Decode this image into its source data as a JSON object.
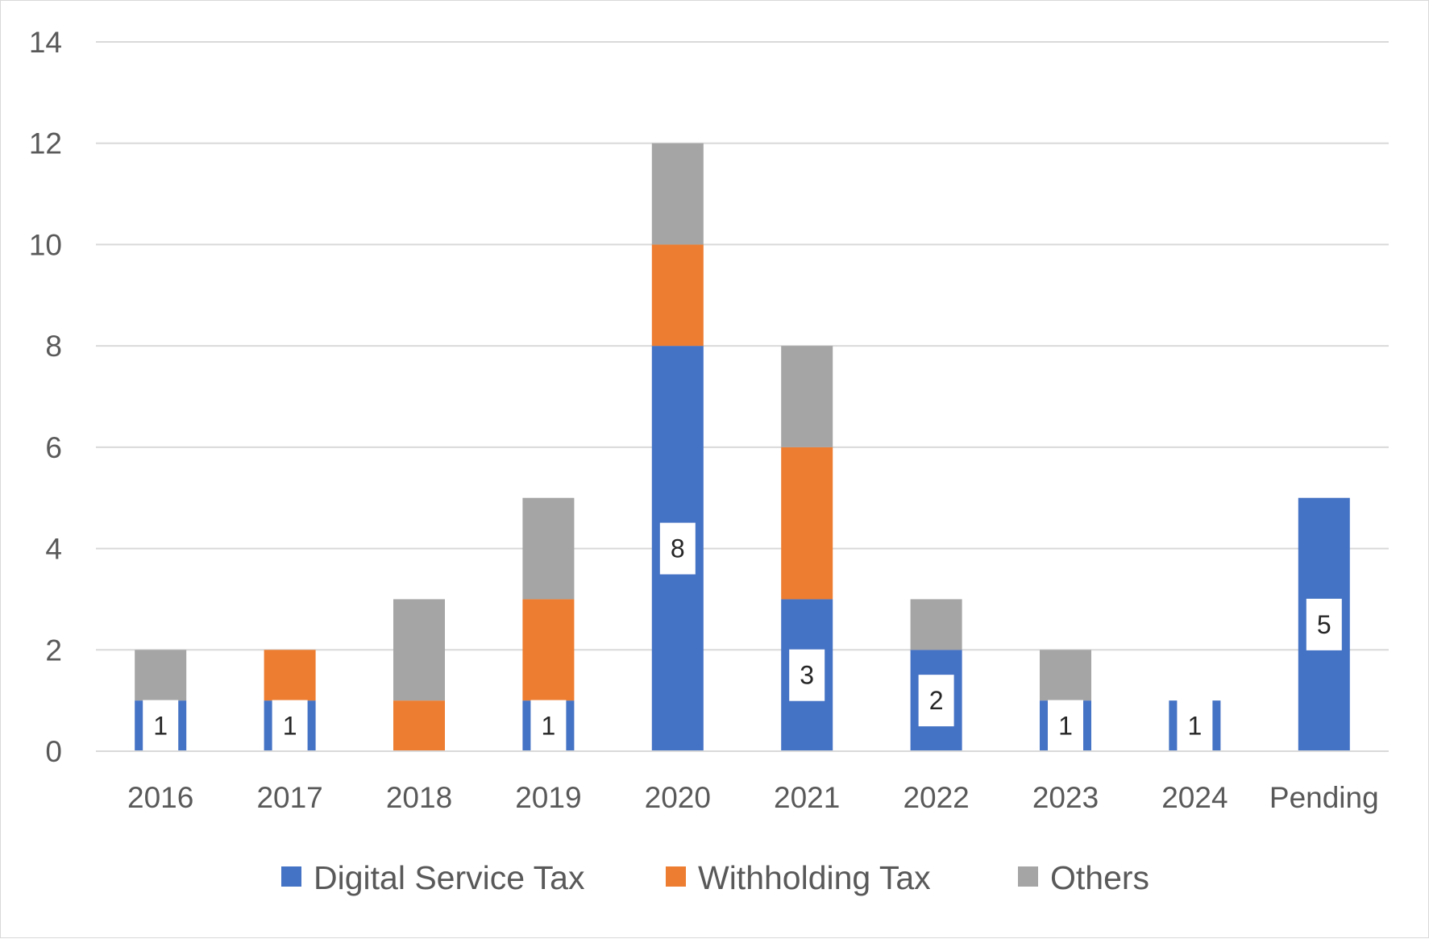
{
  "chart_data": {
    "type": "bar",
    "stacked": true,
    "title": "",
    "xlabel": "",
    "ylabel": "",
    "categories": [
      "2016",
      "2017",
      "2018",
      "2019",
      "2020",
      "2021",
      "2022",
      "2023",
      "2024",
      "Pending"
    ],
    "series": [
      {
        "name": "Digital Service Tax",
        "color": "#4472C4",
        "values": [
          1,
          1,
          0,
          1,
          8,
          3,
          2,
          1,
          1,
          5
        ]
      },
      {
        "name": "Withholding Tax",
        "color": "#ED7D31",
        "values": [
          0,
          1,
          1,
          2,
          2,
          3,
          0,
          0,
          0,
          0
        ]
      },
      {
        "name": "Others",
        "color": "#A5A5A5",
        "values": [
          1,
          0,
          2,
          2,
          2,
          2,
          1,
          1,
          0,
          0
        ]
      }
    ],
    "data_labels": {
      "series": "Digital Service Tax",
      "values": [
        "1",
        "1",
        "",
        "1",
        "8",
        "3",
        "2",
        "1",
        "1",
        "5"
      ]
    },
    "ylim": [
      0,
      14
    ],
    "yticks": [
      "0",
      "2",
      "4",
      "6",
      "8",
      "10",
      "12",
      "14"
    ],
    "grid": true,
    "legend_position": "bottom"
  }
}
